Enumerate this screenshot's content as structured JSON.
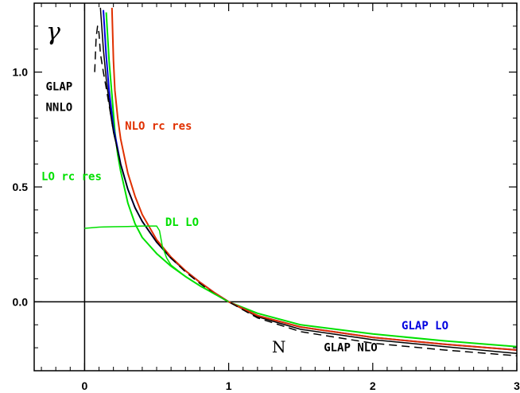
{
  "chart_data": {
    "type": "line",
    "title": "",
    "xlabel": "N",
    "ylabel": "γ",
    "xlim": [
      -0.35,
      3.0
    ],
    "ylim": [
      -0.3,
      1.3
    ],
    "x_ticks": [
      "0",
      "1",
      "2",
      "3"
    ],
    "y_ticks": [
      "0.0",
      "0.5",
      "1.0"
    ],
    "grid": false,
    "series": [
      {
        "name": "LO rc res",
        "color": "#00e000",
        "width": 2,
        "dashed": false,
        "points": [
          [
            0.15,
            1.26
          ],
          [
            0.17,
            1.05
          ],
          [
            0.19,
            0.9
          ],
          [
            0.21,
            0.74
          ],
          [
            0.23,
            0.64
          ],
          [
            0.25,
            0.57
          ],
          [
            0.3,
            0.43
          ],
          [
            0.35,
            0.34
          ],
          [
            0.4,
            0.28
          ],
          [
            0.5,
            0.21
          ],
          [
            0.6,
            0.155
          ],
          [
            0.7,
            0.11
          ],
          [
            0.8,
            0.07
          ],
          [
            0.9,
            0.035
          ],
          [
            1.0,
            0.0
          ],
          [
            1.2,
            -0.05
          ],
          [
            1.5,
            -0.1
          ],
          [
            2.0,
            -0.14
          ],
          [
            2.5,
            -0.17
          ],
          [
            3.0,
            -0.195
          ]
        ]
      },
      {
        "name": "GLAP LO",
        "color": "#0000e0",
        "width": 2,
        "dashed": false,
        "points": [
          [
            0.13,
            1.27
          ],
          [
            0.15,
            1.07
          ],
          [
            0.17,
            0.92
          ],
          [
            0.2,
            0.76
          ],
          [
            0.25,
            0.6
          ],
          [
            0.3,
            0.49
          ],
          [
            0.35,
            0.41
          ],
          [
            0.4,
            0.35
          ],
          [
            0.5,
            0.26
          ],
          [
            0.6,
            0.19
          ],
          [
            0.7,
            0.135
          ],
          [
            0.8,
            0.085
          ],
          [
            0.9,
            0.04
          ],
          [
            1.0,
            0.0
          ],
          [
            1.2,
            -0.06
          ],
          [
            1.5,
            -0.11
          ],
          [
            2.0,
            -0.155
          ],
          [
            2.5,
            -0.185
          ],
          [
            3.0,
            -0.21
          ]
        ]
      },
      {
        "name": "GLAP NLO",
        "color": "#000000",
        "width": 1.5,
        "dashed": false,
        "points": [
          [
            0.11,
            1.28
          ],
          [
            0.13,
            1.1
          ],
          [
            0.15,
            0.97
          ],
          [
            0.18,
            0.82
          ],
          [
            0.2,
            0.74
          ],
          [
            0.25,
            0.6
          ],
          [
            0.3,
            0.49
          ],
          [
            0.35,
            0.41
          ],
          [
            0.4,
            0.35
          ],
          [
            0.5,
            0.26
          ],
          [
            0.6,
            0.19
          ],
          [
            0.7,
            0.135
          ],
          [
            0.8,
            0.085
          ],
          [
            0.9,
            0.04
          ],
          [
            1.0,
            0.0
          ],
          [
            1.2,
            -0.065
          ],
          [
            1.5,
            -0.12
          ],
          [
            2.0,
            -0.165
          ],
          [
            2.5,
            -0.195
          ],
          [
            3.0,
            -0.225
          ]
        ]
      },
      {
        "name": "NLO rc res",
        "color": "#e03000",
        "width": 2,
        "dashed": false,
        "points": [
          [
            0.19,
            1.28
          ],
          [
            0.2,
            1.05
          ],
          [
            0.21,
            0.92
          ],
          [
            0.23,
            0.8
          ],
          [
            0.25,
            0.71
          ],
          [
            0.3,
            0.56
          ],
          [
            0.35,
            0.46
          ],
          [
            0.4,
            0.38
          ],
          [
            0.5,
            0.27
          ],
          [
            0.6,
            0.195
          ],
          [
            0.7,
            0.135
          ],
          [
            0.8,
            0.085
          ],
          [
            0.9,
            0.04
          ],
          [
            1.0,
            0.0
          ],
          [
            1.2,
            -0.06
          ],
          [
            1.5,
            -0.11
          ],
          [
            2.0,
            -0.155
          ],
          [
            2.5,
            -0.185
          ],
          [
            3.0,
            -0.21
          ]
        ]
      },
      {
        "name": "GLAP NNLO",
        "color": "#000000",
        "width": 1.5,
        "dashed": true,
        "points": [
          [
            0.07,
            1.0
          ],
          [
            0.08,
            1.15
          ],
          [
            0.09,
            1.2
          ],
          [
            0.1,
            1.17
          ],
          [
            0.11,
            1.08
          ],
          [
            0.13,
            1.0
          ],
          [
            0.15,
            0.93
          ],
          [
            0.18,
            0.82
          ],
          [
            0.2,
            0.74
          ],
          [
            0.25,
            0.6
          ],
          [
            0.3,
            0.49
          ],
          [
            0.35,
            0.41
          ],
          [
            0.4,
            0.35
          ],
          [
            0.5,
            0.26
          ],
          [
            0.6,
            0.19
          ],
          [
            0.7,
            0.13
          ],
          [
            0.8,
            0.08
          ],
          [
            0.9,
            0.035
          ],
          [
            1.0,
            0.0
          ],
          [
            1.2,
            -0.07
          ],
          [
            1.5,
            -0.13
          ],
          [
            2.0,
            -0.18
          ],
          [
            2.5,
            -0.21
          ],
          [
            3.0,
            -0.235
          ]
        ]
      },
      {
        "name": "DL LO",
        "color": "#00e000",
        "width": 1.5,
        "dashed": false,
        "points": [
          [
            0.0,
            0.32
          ],
          [
            0.1,
            0.325
          ],
          [
            0.2,
            0.327
          ],
          [
            0.3,
            0.328
          ],
          [
            0.4,
            0.33
          ],
          [
            0.5,
            0.33
          ],
          [
            0.52,
            0.31
          ],
          [
            0.54,
            0.24
          ],
          [
            0.57,
            0.19
          ],
          [
            0.6,
            0.16
          ],
          [
            0.7,
            0.11
          ],
          [
            0.8,
            0.07
          ],
          [
            0.9,
            0.035
          ],
          [
            1.0,
            0.0
          ]
        ]
      }
    ],
    "labels": [
      {
        "text": "GLAP",
        "x": -0.27,
        "y": 0.92,
        "color": "#000000"
      },
      {
        "text": "NNLO",
        "x": -0.27,
        "y": 0.83,
        "color": "#000000"
      },
      {
        "text": "NLO rc res",
        "x": 0.28,
        "y": 0.75,
        "color": "#e03000"
      },
      {
        "text": "LO rc res",
        "x": -0.3,
        "y": 0.53,
        "color": "#00e000"
      },
      {
        "text": "DL LO",
        "x": 0.56,
        "y": 0.33,
        "color": "#00e000"
      },
      {
        "text": "GLAP LO",
        "x": 2.2,
        "y": -0.12,
        "color": "#0000e0"
      },
      {
        "text": "GLAP NLO",
        "x": 1.66,
        "y": -0.215,
        "color": "#000000"
      }
    ]
  }
}
